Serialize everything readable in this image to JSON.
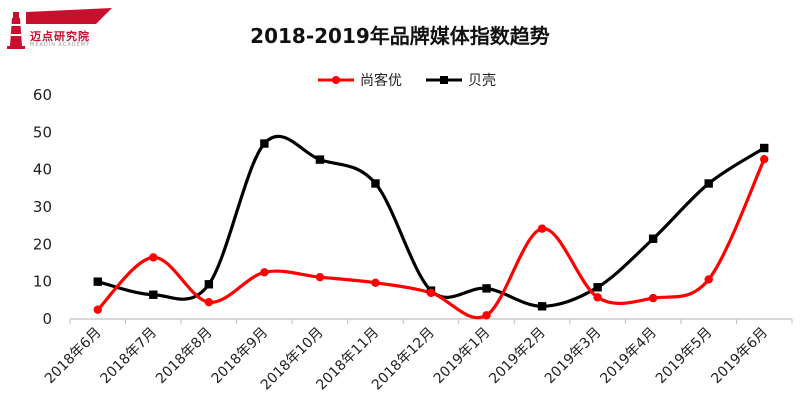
{
  "logo": {
    "text": "迈点研究院",
    "subtext": "MEADIN ACADEMY"
  },
  "chart_data": {
    "type": "line",
    "title": "2018-2019年品牌媒体指数趋势",
    "categories": [
      "2018年6月",
      "2018年7月",
      "2018年8月",
      "2018年9月",
      "2018年10月",
      "2018年11月",
      "2018年12月",
      "2019年1月",
      "2019年2月",
      "2019年3月",
      "2019年4月",
      "2019年5月",
      "2019年6月"
    ],
    "series": [
      {
        "name": "尚客优",
        "color": "#ff0000",
        "marker": "circle",
        "values": [
          2.5,
          16.5,
          4.5,
          12.5,
          11.2,
          9.7,
          7.0,
          1.0,
          24.2,
          5.8,
          5.6,
          10.6,
          42.8
        ]
      },
      {
        "name": "贝壳",
        "color": "#000000",
        "marker": "square",
        "values": [
          10.0,
          6.5,
          9.3,
          47.0,
          42.7,
          36.3,
          7.6,
          8.2,
          3.4,
          8.5,
          21.5,
          36.3,
          45.8
        ]
      }
    ],
    "ylim": [
      0,
      60
    ],
    "yticks": [
      "0",
      "10",
      "20",
      "30",
      "40",
      "50",
      "60"
    ],
    "legend": "top-center",
    "grid": false
  }
}
